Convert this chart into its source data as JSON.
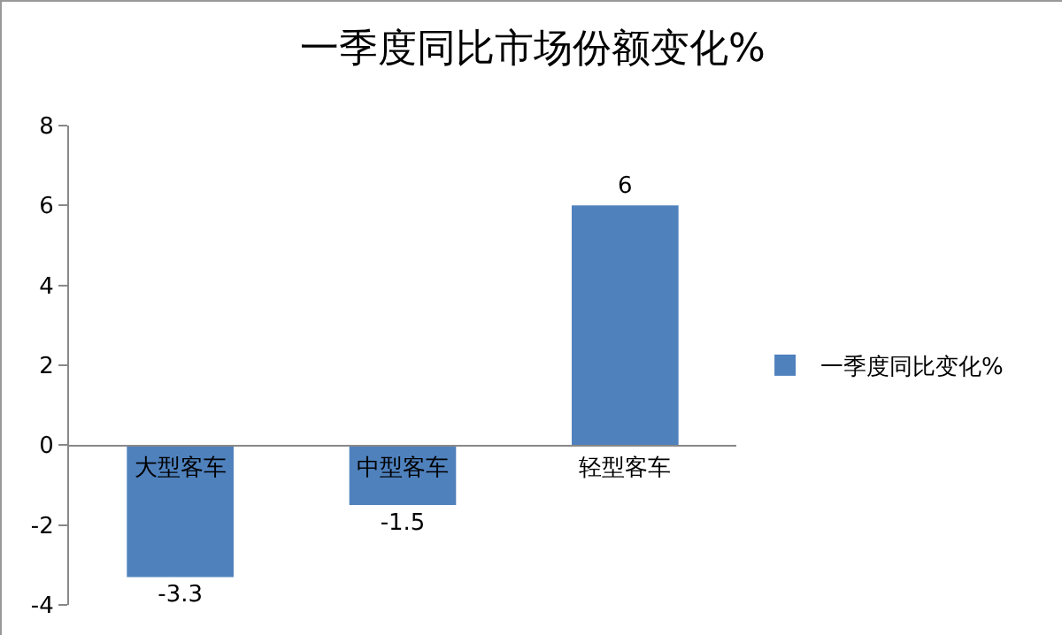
{
  "chart_data": {
    "type": "bar",
    "title": "一季度同比市场份额变化%",
    "categories": [
      "大型客车",
      "中型客车",
      "轻型客车"
    ],
    "series": [
      {
        "name": "一季度同比变化%",
        "color": "#4f81bd",
        "values": [
          -3.3,
          -1.5,
          6
        ]
      }
    ],
    "ylim": [
      -4,
      8
    ],
    "yticks": [
      -4,
      -2,
      0,
      2,
      4,
      6,
      8
    ],
    "grid": false,
    "legend": "right",
    "data_labels": true
  }
}
